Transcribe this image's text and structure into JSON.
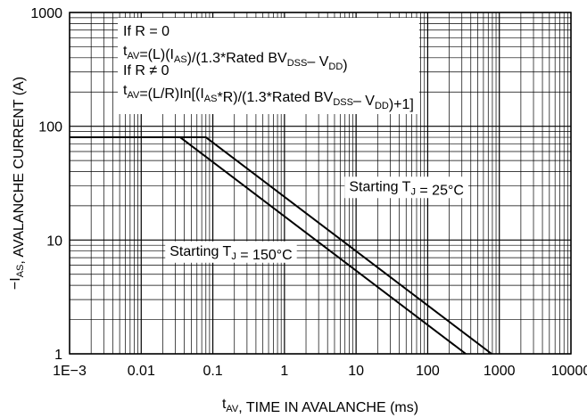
{
  "chart_data": {
    "type": "line",
    "title": "",
    "xlabel": {
      "main": "t",
      "sub": "AV",
      "rest": ", TIME IN AVALANCHE (ms)"
    },
    "ylabel": {
      "pre": "−I",
      "sub": "AS",
      "rest": ", AVALANCHE CURRENT (A)"
    },
    "x_scale": "log",
    "y_scale": "log",
    "xlim": [
      0.001,
      10000
    ],
    "ylim": [
      1,
      1000
    ],
    "grid": true,
    "x_ticks": [
      {
        "value": 0.001,
        "label": "1E−3"
      },
      {
        "value": 0.01,
        "label": "0.01"
      },
      {
        "value": 0.1,
        "label": "0.1"
      },
      {
        "value": 1,
        "label": "1"
      },
      {
        "value": 10,
        "label": "10"
      },
      {
        "value": 100,
        "label": "100"
      },
      {
        "value": 1000,
        "label": "1000"
      },
      {
        "value": 10000,
        "label": "10000"
      }
    ],
    "y_ticks": [
      {
        "value": 1,
        "label": "1"
      },
      {
        "value": 10,
        "label": "10"
      },
      {
        "value": 100,
        "label": "100"
      },
      {
        "value": 1000,
        "label": "1000"
      }
    ],
    "series": [
      {
        "name": "Starting T_J = 25°C",
        "points": [
          [
            0.001,
            80
          ],
          [
            0.08,
            80
          ],
          [
            780,
            1
          ]
        ]
      },
      {
        "name": "Starting T_J = 150°C",
        "points": [
          [
            0.001,
            80
          ],
          [
            0.035,
            80
          ],
          [
            340,
            1
          ]
        ]
      }
    ],
    "labels": [
      {
        "series": 0,
        "x": 8,
        "y": 27,
        "parts": [
          [
            "Starting T",
            ""
          ],
          [
            "J",
            "sub"
          ],
          [
            " = 25°C",
            ""
          ]
        ]
      },
      {
        "series": 1,
        "x": 0.025,
        "y": 7.3,
        "parts": [
          [
            "Starting T",
            ""
          ],
          [
            "J",
            "sub"
          ],
          [
            " = 150°C",
            ""
          ]
        ]
      }
    ],
    "annotation_lines": [
      [
        [
          "If R = 0",
          ""
        ]
      ],
      [
        [
          "t",
          ""
        ],
        [
          "AV",
          "sub"
        ],
        [
          "=(L)(I",
          ""
        ],
        [
          "AS",
          "sub"
        ],
        [
          ")/(1.3*Rated BV",
          ""
        ],
        [
          "DSS",
          "sub"
        ],
        [
          "– V",
          ""
        ],
        [
          "DD",
          "sub"
        ],
        [
          ")",
          ""
        ]
      ],
      [
        [
          "If R ≠ 0",
          ""
        ]
      ],
      [
        [
          "t",
          ""
        ],
        [
          "AV",
          "sub"
        ],
        [
          "=(L/R)In[(I",
          ""
        ],
        [
          "AS",
          "sub"
        ],
        [
          "*R)/(1.3*Rated BV",
          ""
        ],
        [
          "DSS",
          "sub"
        ],
        [
          "– V",
          ""
        ],
        [
          "DD",
          "sub"
        ],
        [
          ")+1]",
          ""
        ]
      ]
    ]
  }
}
